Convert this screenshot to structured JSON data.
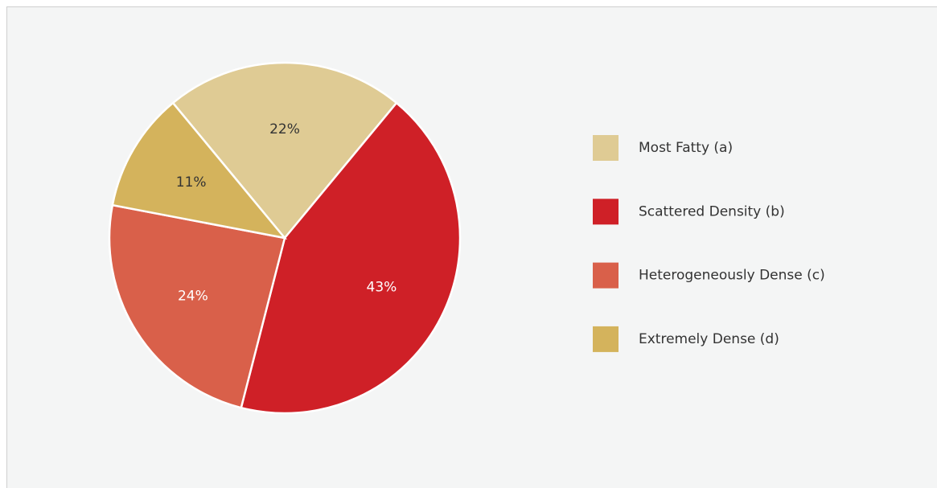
{
  "chart_data": {
    "type": "pie",
    "categories": [
      "Most Fatty (a)",
      "Scattered Density (b)",
      "Heterogeneously Dense (c)",
      "Extremely Dense (d)"
    ],
    "values": [
      22,
      43,
      24,
      11
    ],
    "value_labels": [
      "22%",
      "43%",
      "24%",
      "11%"
    ],
    "colors": [
      "#dfcb94",
      "#cf2027",
      "#d9604a",
      "#d4b35c"
    ],
    "legend": "right"
  }
}
